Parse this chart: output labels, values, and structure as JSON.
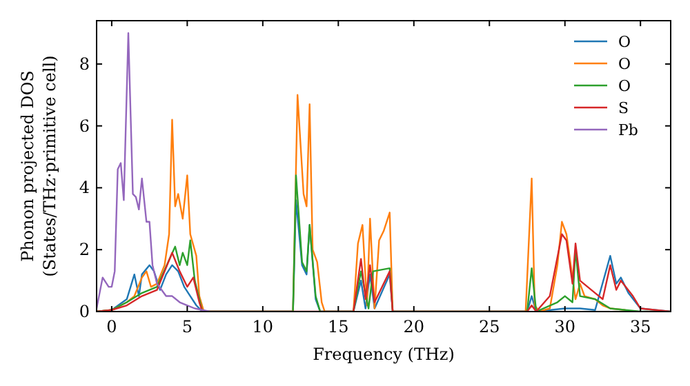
{
  "chart_data": {
    "type": "line",
    "xlabel": "Frequency (THz)",
    "ylabel": "Phonon projected DOS\n(States/THz·primitive cell)",
    "xlim": [
      -1,
      37
    ],
    "ylim": [
      0,
      9.4
    ],
    "xticks": [
      0,
      5,
      10,
      15,
      20,
      25,
      30,
      35
    ],
    "yticks": [
      0,
      2,
      4,
      6,
      8
    ],
    "legend": "top right",
    "grid": false,
    "series": [
      {
        "name": "O",
        "color": "#1f77b4",
        "x": [
          -1,
          0,
          1,
          1.5,
          1.8,
          2,
          2.5,
          2.8,
          3.2,
          3.6,
          4,
          4.4,
          4.8,
          5.2,
          5.6,
          6,
          12,
          12.2,
          12.6,
          12.9,
          13.1,
          13.5,
          13.8,
          16,
          16.5,
          16.8,
          17.1,
          17.4,
          18.4,
          18.6,
          27.5,
          27.8,
          28.1,
          30,
          31,
          32,
          33,
          33.4,
          33.7,
          34.2,
          35,
          37
        ],
        "values": [
          0,
          0.05,
          0.4,
          1.2,
          0.5,
          1.2,
          1.5,
          1.3,
          0.7,
          1.2,
          1.5,
          1.3,
          0.8,
          0.5,
          0.2,
          0,
          0,
          3.6,
          1.5,
          1.2,
          2.8,
          0.4,
          0,
          0,
          1,
          0.1,
          1.2,
          0.1,
          1.2,
          0,
          0,
          0.5,
          0,
          0.1,
          0.1,
          0.05,
          1.8,
          0.9,
          1.1,
          0.6,
          0.1,
          0
        ]
      },
      {
        "name": "O",
        "color": "#ff7f0e",
        "x": [
          -1,
          0,
          1,
          1.5,
          2,
          2.3,
          2.6,
          3,
          3.5,
          3.8,
          4,
          4.2,
          4.4,
          4.7,
          5,
          5.2,
          5.6,
          5.8,
          6.1,
          12,
          12.3,
          12.7,
          12.9,
          13.1,
          13.3,
          13.6,
          13.9,
          14.1,
          16,
          16.3,
          16.6,
          16.9,
          17.1,
          17.4,
          17.7,
          18,
          18.4,
          18.6,
          27.4,
          27.8,
          28,
          28.3,
          29,
          29.5,
          29.8,
          30.1,
          30.5,
          30.7,
          31,
          31.3,
          32,
          32.5,
          33,
          34
        ],
        "values": [
          0,
          0.05,
          0.3,
          0.5,
          1.1,
          1.3,
          0.8,
          0.9,
          1.5,
          2.5,
          6.2,
          3.4,
          3.8,
          3,
          4.4,
          2.5,
          1.8,
          0.5,
          0,
          0,
          7,
          3.8,
          3.4,
          6.7,
          2,
          1.6,
          0.3,
          0,
          0,
          2.2,
          2.8,
          0.2,
          3,
          0.1,
          2.3,
          2.6,
          3.2,
          0,
          0,
          4.3,
          0.2,
          0,
          0.1,
          1.5,
          2.9,
          2.5,
          1.1,
          0.4,
          0.9,
          0.5,
          0.4,
          0.2,
          0.1,
          0.05
        ]
      },
      {
        "name": "O",
        "color": "#2ca02c",
        "x": [
          -1,
          0,
          1,
          2,
          3,
          4.2,
          4.5,
          4.7,
          5,
          5.2,
          5.5,
          6,
          12,
          12.2,
          12.6,
          12.9,
          13.1,
          13.5,
          13.8,
          16,
          16.5,
          17,
          17.3,
          18.4,
          18.6,
          27.5,
          27.8,
          28.1,
          29.5,
          30,
          30.5,
          30.7,
          31,
          32,
          33,
          35,
          37
        ],
        "values": [
          0,
          0.05,
          0.3,
          0.6,
          0.8,
          2.1,
          1.5,
          1.9,
          1.5,
          2.3,
          1,
          0,
          0,
          4.4,
          1.6,
          1.3,
          2.8,
          0.5,
          0,
          0,
          1.3,
          0.1,
          1.3,
          1.4,
          0,
          0,
          1.4,
          0,
          0.3,
          0.5,
          0.3,
          2,
          0.5,
          0.4,
          0.1,
          0,
          0
        ]
      },
      {
        "name": "S",
        "color": "#d62728",
        "x": [
          -1,
          0,
          1,
          2,
          3,
          4,
          4.5,
          5,
          5.4,
          5.8,
          6,
          16,
          16.5,
          16.8,
          17.1,
          17.4,
          18.4,
          18.6,
          27.5,
          27.8,
          28.1,
          29,
          29.8,
          30.1,
          30.5,
          30.7,
          31,
          31.5,
          32,
          32.5,
          33,
          33.4,
          33.7,
          34.5,
          35,
          37
        ],
        "values": [
          0,
          0.05,
          0.2,
          0.5,
          0.7,
          1.9,
          1.3,
          0.8,
          1.1,
          0.3,
          0,
          0,
          1.7,
          0.4,
          1.5,
          0.3,
          1.3,
          0,
          0,
          0.2,
          0,
          0.5,
          2.5,
          2.3,
          0.9,
          2.2,
          1,
          0.8,
          0.6,
          0.4,
          1.5,
          0.7,
          1,
          0.5,
          0.1,
          0
        ]
      },
      {
        "name": "Pb",
        "color": "#9467bd",
        "x": [
          -1,
          -0.6,
          -0.2,
          0,
          0.2,
          0.4,
          0.6,
          0.8,
          1.1,
          1.4,
          1.6,
          1.8,
          2,
          2.3,
          2.5,
          2.7,
          3,
          3.3,
          3.6,
          4,
          4.5,
          5,
          5.5,
          6,
          6.5
        ],
        "values": [
          0.1,
          1.1,
          0.8,
          0.8,
          1.3,
          4.6,
          4.8,
          3.6,
          9,
          3.8,
          3.7,
          3.3,
          4.3,
          2.9,
          2.9,
          1.5,
          0.9,
          0.7,
          0.5,
          0.5,
          0.3,
          0.2,
          0.1,
          0.05,
          0
        ]
      }
    ]
  }
}
